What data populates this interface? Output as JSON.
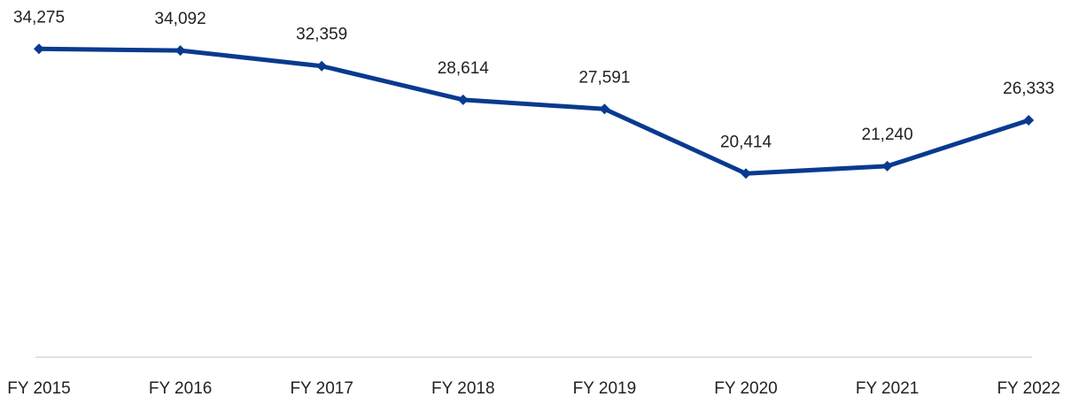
{
  "chart_data": {
    "type": "line",
    "categories": [
      "FY 2015",
      "FY 2016",
      "FY 2017",
      "FY 2018",
      "FY 2019",
      "FY 2020",
      "FY 2021",
      "FY 2022"
    ],
    "values": [
      34275,
      34092,
      32359,
      28614,
      27591,
      20414,
      21240,
      26333
    ],
    "value_labels": [
      "34,275",
      "34,092",
      "32,359",
      "28,614",
      "27,591",
      "20,414",
      "21,240",
      "26,333"
    ],
    "color": "#083a8f",
    "ylim": [
      0,
      40000
    ]
  }
}
